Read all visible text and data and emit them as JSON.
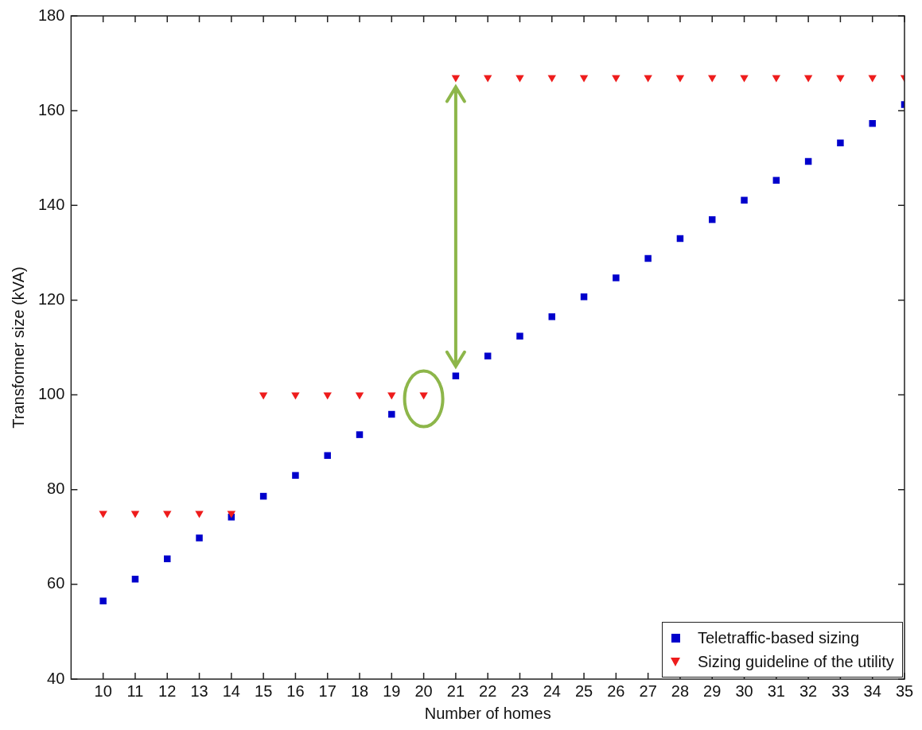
{
  "chart_data": {
    "type": "scatter",
    "xlabel": "Number of homes",
    "ylabel": "Transformer size (kVA)",
    "x": [
      10,
      11,
      12,
      13,
      14,
      15,
      16,
      17,
      18,
      19,
      20,
      21,
      22,
      23,
      24,
      25,
      26,
      27,
      28,
      29,
      30,
      31,
      32,
      33,
      34,
      35
    ],
    "series": [
      {
        "name": "Teletraffic-based sizing",
        "color": "#0000cc",
        "marker": "square",
        "values": [
          56.5,
          61.1,
          65.4,
          69.8,
          74.2,
          78.6,
          83.0,
          87.2,
          91.6,
          95.9,
          null,
          104.0,
          108.2,
          112.4,
          116.5,
          120.7,
          124.7,
          128.8,
          133.0,
          137.0,
          141.1,
          145.3,
          149.3,
          153.2,
          157.3,
          161.3
        ]
      },
      {
        "name": "Sizing guideline of the utility",
        "color": "#ee1c1c",
        "marker": "triangle",
        "values": [
          75,
          75,
          75,
          75,
          75,
          100,
          100,
          100,
          100,
          100,
          100,
          167,
          167,
          167,
          167,
          167,
          167,
          167,
          167,
          167,
          167,
          167,
          167,
          167,
          167,
          167
        ]
      }
    ],
    "xlim": [
      9,
      35
    ],
    "xticks": [
      10,
      11,
      12,
      13,
      14,
      15,
      16,
      17,
      18,
      19,
      20,
      21,
      22,
      23,
      24,
      25,
      26,
      27,
      28,
      29,
      30,
      31,
      32,
      33,
      34,
      35
    ],
    "ylim": [
      40,
      180
    ],
    "yticks": [
      40,
      60,
      80,
      100,
      120,
      140,
      160,
      180
    ],
    "grid": false,
    "legend": "bottom right"
  }
}
